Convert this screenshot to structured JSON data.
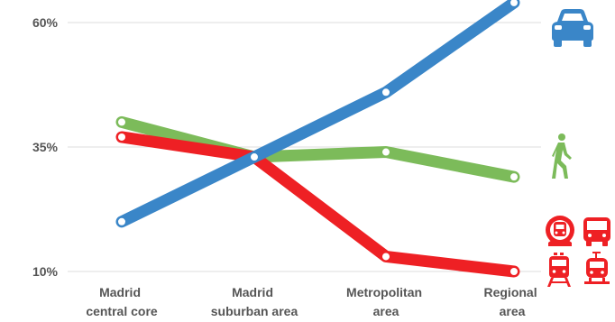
{
  "colors": {
    "car": "#3a86c8",
    "walking": "#7cbb5a",
    "public_transport": "#ee2024",
    "grid": "#dddddd",
    "text": "#555555"
  },
  "icons": {
    "car": "car-icon",
    "walking": "pedestrian-icon",
    "public_transport": [
      "metro-icon",
      "bus-icon",
      "train-icon",
      "tram-icon"
    ]
  },
  "chart_data": {
    "type": "line",
    "categories": [
      [
        "Madrid",
        "central core"
      ],
      [
        "Madrid",
        "suburban area"
      ],
      [
        "Metropolitan",
        "area"
      ],
      [
        "Regional",
        "area"
      ]
    ],
    "series": [
      {
        "key": "walking",
        "values": [
          40,
          33,
          34,
          29
        ]
      },
      {
        "key": "public_transport",
        "values": [
          37,
          33,
          13,
          10
        ]
      },
      {
        "key": "car",
        "values": [
          20,
          33,
          46,
          64
        ]
      }
    ],
    "yticks": [
      "60%",
      "35%",
      "10%"
    ],
    "ytick_values": [
      60,
      35,
      10
    ],
    "ylim": [
      10,
      60
    ],
    "grid": true,
    "legend": "icons at right end of each line"
  }
}
